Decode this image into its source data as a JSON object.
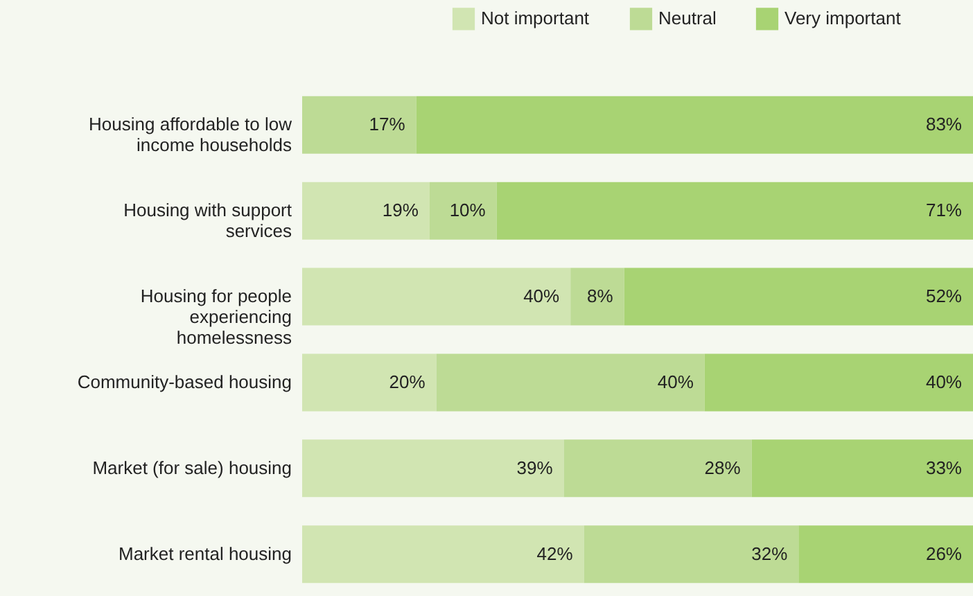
{
  "chart_data": {
    "type": "bar",
    "orientation": "horizontal",
    "stacked": true,
    "tick_labels": "y",
    "legend": "top right",
    "xlim": [
      0,
      100
    ],
    "categories": [
      "Housing affordable to low\nincome households",
      "Housing with support\nservices",
      "Housing for people\nexperiencing\nhomelessness",
      "Community-based housing",
      "Market (for sale) housing",
      "Market rental housing"
    ],
    "series": [
      {
        "name": "Not important",
        "color": "#d1e5b2",
        "values": [
          0,
          19,
          40,
          20,
          39,
          42
        ],
        "value_labels": [
          null,
          "19%",
          "40%",
          "20%",
          "39%",
          "42%"
        ]
      },
      {
        "name": "Neutral",
        "color": "#bddb95",
        "values": [
          17,
          10,
          8,
          40,
          28,
          32
        ],
        "value_labels": [
          "17%",
          "10%",
          "8%",
          "40%",
          "28%",
          "32%"
        ]
      },
      {
        "name": "Very important",
        "color": "#a8d373",
        "values": [
          83,
          71,
          52,
          40,
          33,
          26
        ],
        "value_labels": [
          "83%",
          "71%",
          "52%",
          "40%",
          "33%",
          "26%"
        ]
      }
    ]
  }
}
